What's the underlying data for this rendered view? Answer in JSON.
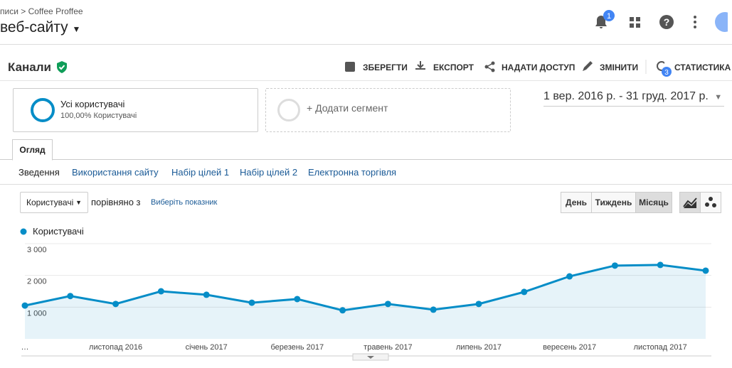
{
  "header": {
    "breadcrumb_parent": "писи",
    "breadcrumb_current": "Coffee Proffee",
    "view": "веб-сайту",
    "notification_count": 1
  },
  "report": {
    "title": "Канали",
    "actions": [
      "ЗБЕРЕГТИ",
      "ЕКСПОРТ",
      "НАДАТИ ДОСТУП",
      "ЗМІНИТИ",
      "СТАТИСТИКА"
    ],
    "insights_count": 3
  },
  "segments": {
    "active_name": "Усі користувачі",
    "active_detail": "100,00% Користувачі",
    "add": "+ Додати сегмент"
  },
  "date_range": "1 вер. 2016 р. - 31 груд. 2017 р.",
  "tabs": [
    "Огляд"
  ],
  "subtabs": [
    "Зведення",
    "Використання сайту",
    "Набір цілей 1",
    "Набір цілей 2",
    "Електронна торгівля"
  ],
  "controls": {
    "metric": "Користувачі",
    "compare": "порівняно з",
    "choose": "Виберіть показник",
    "periods": [
      "День",
      "Тиждень",
      "Місяць"
    ],
    "active_period_index": 2
  },
  "chart_data": {
    "type": "area",
    "categories": [
      "…",
      null,
      "листопад 2016",
      null,
      "січень 2017",
      null,
      "березень 2017",
      null,
      "травень 2017",
      null,
      "липень 2017",
      null,
      "вересень 2017",
      null,
      "листопад 2017",
      null
    ],
    "series": [
      {
        "name": "Користувачі",
        "color": "#058dc7",
        "values": [
          1050,
          1350,
          1100,
          1500,
          1390,
          1140,
          1255,
          900,
          1100,
          920,
          1100,
          1480,
          1970,
          2310,
          2330,
          2150
        ]
      }
    ],
    "ylim": [
      0,
      3000
    ],
    "yticks": [
      {
        "value": 1000,
        "label": "1 000"
      },
      {
        "value": 2000,
        "label": "2 000"
      },
      {
        "value": 3000,
        "label": "3 000"
      }
    ],
    "grid": true
  }
}
